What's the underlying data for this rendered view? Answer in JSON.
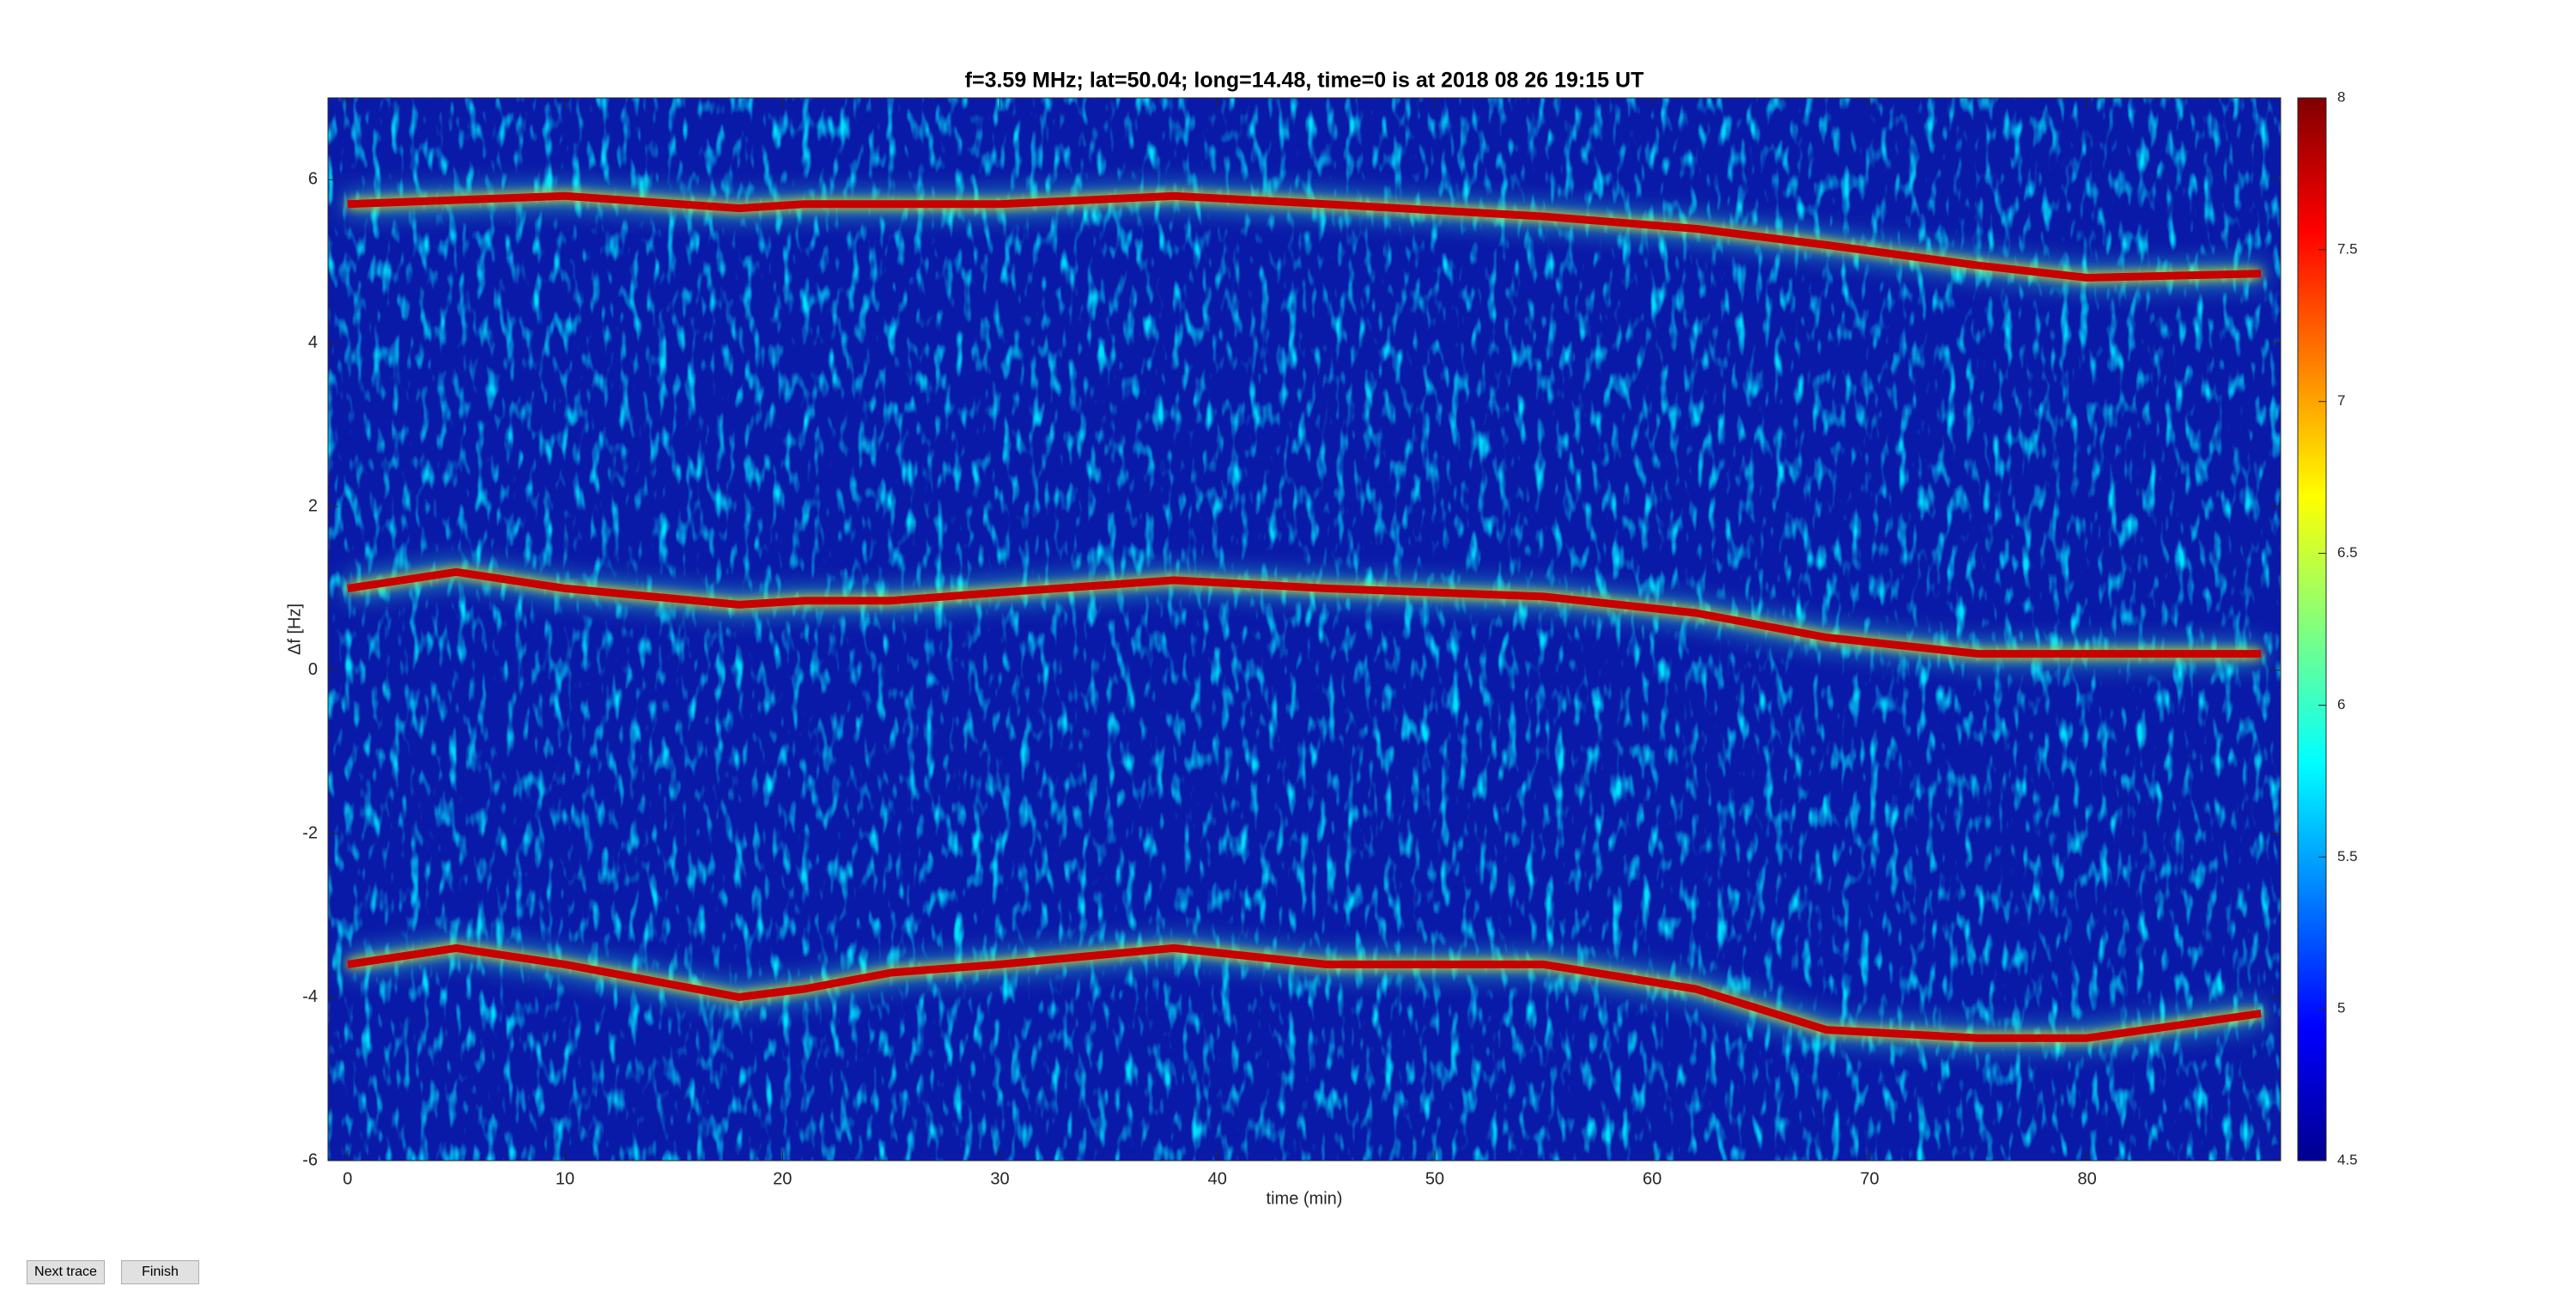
{
  "chart_data": {
    "type": "heatmap",
    "title": "f=3.59 MHz;  lat=50.04; long=14.48, time=0 is at 2018 08 26 19:15 UT",
    "xlabel": "time (min)",
    "ylabel": "Δf [Hz]",
    "xlim": [
      -0.9,
      88.9
    ],
    "xticks": [
      0,
      10,
      20,
      30,
      40,
      50,
      60,
      70,
      80
    ],
    "ylim": [
      -6,
      7
    ],
    "yticks": [
      -6,
      -4,
      -2,
      0,
      2,
      4,
      6
    ],
    "clim": [
      4.5,
      8
    ],
    "cticks": [
      4.5,
      5,
      5.5,
      6,
      6.5,
      7,
      7.5,
      8
    ],
    "colormap": "jet",
    "x": [
      0,
      5,
      10,
      18,
      21,
      25,
      30,
      38,
      45,
      55,
      62,
      68,
      75,
      80,
      88
    ],
    "series": [
      {
        "color": "#c80000",
        "values": [
          5.7,
          5.75,
          5.8,
          5.65,
          5.7,
          5.7,
          5.7,
          5.8,
          5.7,
          5.55,
          5.4,
          5.2,
          4.95,
          4.8,
          4.85
        ]
      },
      {
        "color": "#c80000",
        "values": [
          1.0,
          1.2,
          1.0,
          0.8,
          0.85,
          0.85,
          0.95,
          1.1,
          1.0,
          0.9,
          0.7,
          0.4,
          0.2,
          0.2,
          0.2
        ]
      },
      {
        "color": "#c80000",
        "values": [
          -3.6,
          -3.4,
          -3.6,
          -4.0,
          -3.9,
          -3.7,
          -3.6,
          -3.4,
          -3.6,
          -3.6,
          -3.9,
          -4.4,
          -4.5,
          -4.5,
          -4.2
        ]
      }
    ]
  },
  "buttons": [
    "Next trace",
    "Finish"
  ]
}
